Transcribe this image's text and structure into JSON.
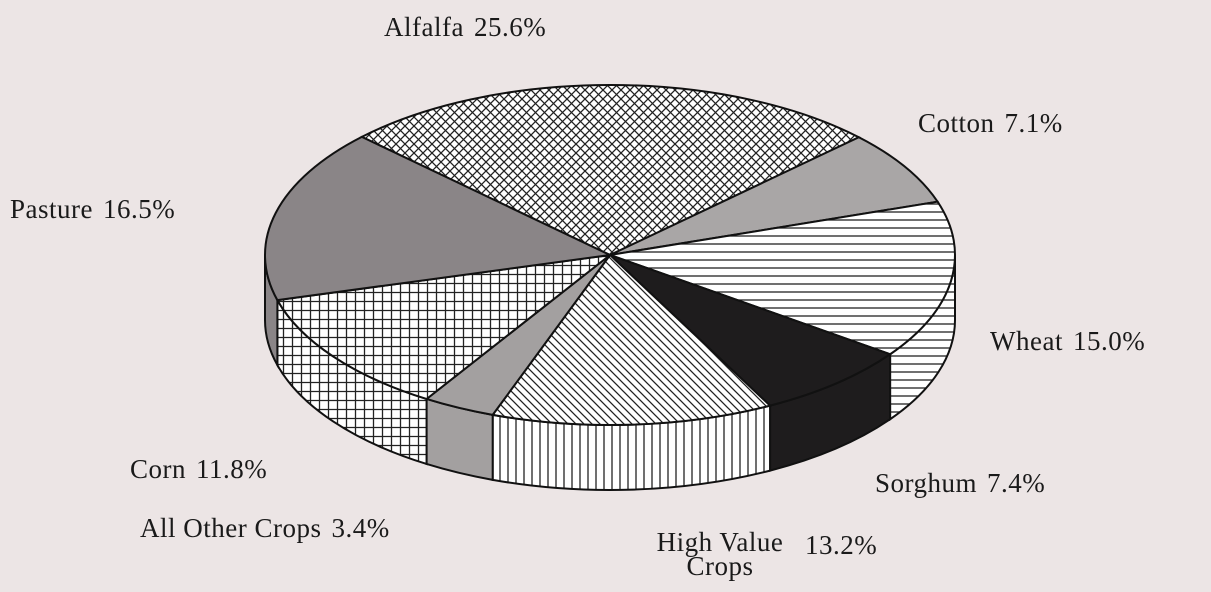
{
  "chart_data": {
    "type": "pie",
    "categories": [
      "Alfalfa",
      "Cotton",
      "Wheat",
      "Sorghum",
      "High Value Crops",
      "All Other Crops",
      "Corn",
      "Pasture"
    ],
    "values": [
      25.6,
      7.1,
      15.0,
      7.4,
      13.2,
      3.4,
      11.8,
      16.5
    ],
    "value_labels": [
      "25.6%",
      "7.1%",
      "15.0%",
      "7.4%",
      "13.2%",
      "3.4%",
      "11.8%",
      "16.5%"
    ],
    "colors": [
      "#ffffff",
      "#a9a6a6",
      "#ffffff",
      "#1e1c1d",
      "#ffffff",
      "#a3a0a0",
      "#ffffff",
      "#8a8587"
    ]
  }
}
